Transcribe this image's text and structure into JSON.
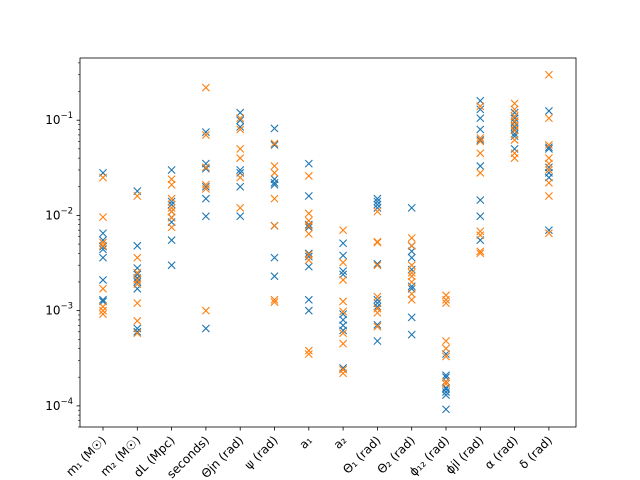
{
  "chart_data": {
    "type": "scatter",
    "marker": "x",
    "y_scale": "log",
    "ylim": [
      6e-05,
      0.45
    ],
    "y_ticks": [
      {
        "value": 0.0001,
        "base": "10",
        "exp": "−4"
      },
      {
        "value": 0.001,
        "base": "10",
        "exp": "−3"
      },
      {
        "value": 0.01,
        "base": "10",
        "exp": "−2"
      },
      {
        "value": 0.1,
        "base": "10",
        "exp": "−1"
      }
    ],
    "categories": [
      {
        "label": "m₁ (M☉)"
      },
      {
        "label": "m₂ (M☉)"
      },
      {
        "label": "dL (Mpc)"
      },
      {
        "label": "seconds)"
      },
      {
        "label": "Θjn (rad)"
      },
      {
        "label": "ψ (rad)"
      },
      {
        "label": "a₁"
      },
      {
        "label": "a₂"
      },
      {
        "label": "Θ₁ (rad)"
      },
      {
        "label": "Θ₂ (rad)"
      },
      {
        "label": "ϕ₁₂ (rad)"
      },
      {
        "label": "ϕjl (rad)"
      },
      {
        "label": "α (rad)"
      },
      {
        "label": "δ (rad)"
      }
    ],
    "series": [
      {
        "color": "#1f77b4",
        "values": [
          [
            0.028,
            0.0065,
            0.0055,
            0.0047,
            0.0044,
            0.0036,
            0.0021,
            0.0013,
            0.00125
          ],
          [
            0.018,
            0.0048,
            0.0028,
            0.0024,
            0.0022,
            0.002,
            0.0017,
            0.00065,
            0.0006
          ],
          [
            0.03,
            0.014,
            0.013,
            0.011,
            0.0095,
            0.0085,
            0.0055,
            0.003
          ],
          [
            0.075,
            0.035,
            0.031,
            0.02,
            0.015,
            0.0098,
            0.00065
          ],
          [
            0.12,
            0.1,
            0.085,
            0.03,
            0.028,
            0.02,
            0.0098
          ],
          [
            0.082,
            0.055,
            0.024,
            0.022,
            0.021,
            0.0078,
            0.0036,
            0.0023
          ],
          [
            0.035,
            0.016,
            0.008,
            0.0075,
            0.004,
            0.0037,
            0.0029,
            0.0013,
            0.001
          ],
          [
            0.0051,
            0.0038,
            0.0026,
            0.0024,
            0.00092,
            0.0008,
            0.0007,
            0.00062,
            0.00025
          ],
          [
            0.015,
            0.014,
            0.013,
            0.012,
            0.0031,
            0.0013,
            0.0012,
            0.0011,
            0.00071,
            0.00048
          ],
          [
            0.012,
            0.0048,
            0.0042,
            0.0036,
            0.0027,
            0.0018,
            0.0017,
            0.00085,
            0.00056
          ],
          [
            0.00035,
            0.00021,
            0.0002,
            0.00018,
            0.000155,
            0.00015,
            0.00014,
            0.00013,
            9.2e-05
          ],
          [
            0.16,
            0.13,
            0.105,
            0.08,
            0.062,
            0.033,
            0.0145,
            0.0098,
            0.0055
          ],
          [
            0.12,
            0.105,
            0.095,
            0.085,
            0.08,
            0.072,
            0.068,
            0.05
          ],
          [
            0.125,
            0.052,
            0.05,
            0.032,
            0.028,
            0.025,
            0.007
          ]
        ]
      },
      {
        "color": "#ff7f0e",
        "values": [
          [
            0.025,
            0.0096,
            0.0052,
            0.0048,
            0.0017,
            0.0011,
            0.001,
            0.00092
          ],
          [
            0.016,
            0.0036,
            0.0025,
            0.0021,
            0.0019,
            0.0012,
            0.00078,
            0.00058
          ],
          [
            0.024,
            0.021,
            0.015,
            0.012,
            0.011,
            0.0095,
            0.0075
          ],
          [
            0.22,
            0.07,
            0.032,
            0.021,
            0.019,
            0.001
          ],
          [
            0.105,
            0.08,
            0.05,
            0.04,
            0.025,
            0.012
          ],
          [
            0.057,
            0.033,
            0.028,
            0.015,
            0.0078,
            0.0013,
            0.00123
          ],
          [
            0.026,
            0.0105,
            0.0088,
            0.0078,
            0.0064,
            0.0039,
            0.0034,
            0.00038,
            0.00035
          ],
          [
            0.007,
            0.0032,
            0.0021,
            0.00125,
            0.00098,
            0.00058,
            0.00045,
            0.00024,
            0.00022
          ],
          [
            0.011,
            0.0053,
            0.0052,
            0.003,
            0.0014,
            0.00105,
            0.00095,
            0.00068
          ],
          [
            0.0058,
            0.0048,
            0.003,
            0.0025,
            0.0023,
            0.002,
            0.0015,
            0.0013
          ],
          [
            0.00145,
            0.0013,
            0.0012,
            0.00048,
            0.0004,
            0.00033,
            0.00018,
            0.00017
          ],
          [
            0.14,
            0.065,
            0.06,
            0.045,
            0.028,
            0.0068,
            0.0062,
            0.0042,
            0.004
          ],
          [
            0.15,
            0.13,
            0.11,
            0.098,
            0.088,
            0.078,
            0.062,
            0.045,
            0.04
          ],
          [
            0.3,
            0.105,
            0.055,
            0.04,
            0.035,
            0.03,
            0.022,
            0.016,
            0.0065
          ]
        ]
      }
    ]
  }
}
